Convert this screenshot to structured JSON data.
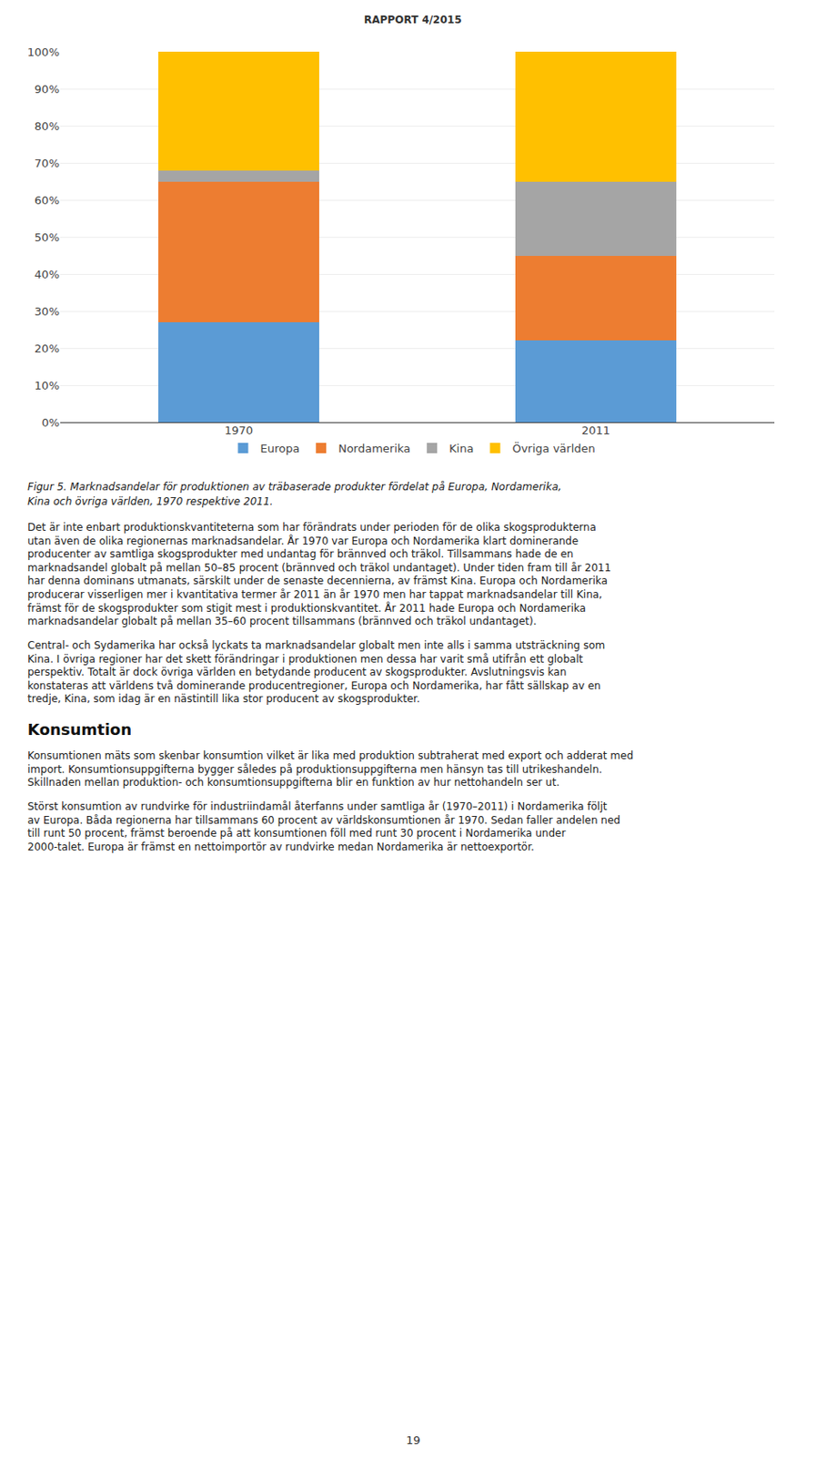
{
  "chart_data": {
    "type": "bar",
    "stacked": true,
    "categories": [
      "1970",
      "2011"
    ],
    "series": [
      {
        "name": "Europa",
        "color": "#5b9bd5",
        "values": [
          27,
          22
        ]
      },
      {
        "name": "Nordamerika",
        "color": "#ed7d31",
        "values": [
          38,
          23
        ]
      },
      {
        "name": "Kina",
        "color": "#a5a5a5",
        "values": [
          3,
          20
        ]
      },
      {
        "name": "Övriga världen",
        "color": "#ffc000",
        "values": [
          32,
          35
        ]
      }
    ],
    "ylim": [
      0,
      100
    ],
    "yticks": [
      {
        "value": 0,
        "label": "0%"
      },
      {
        "value": 10,
        "label": "10%"
      },
      {
        "value": 20,
        "label": "20%"
      },
      {
        "value": 30,
        "label": "30%"
      },
      {
        "value": 40,
        "label": "40%"
      },
      {
        "value": 50,
        "label": "50%"
      },
      {
        "value": 60,
        "label": "60%"
      },
      {
        "value": 70,
        "label": "70%"
      },
      {
        "value": 80,
        "label": "80%"
      },
      {
        "value": 90,
        "label": "90%"
      },
      {
        "value": 100,
        "label": "100%"
      }
    ],
    "grid": true,
    "legend": "bottom",
    "annotations": [
      "RAPPORT 4/2015",
      "Figur 5. Marknadsandelar för produktionen av träbaserade produkter fördelat på Europa, Nordamerika,",
      "Kina och övriga världen, 1970 respektive 2011.",
      "Det är inte enbart produktionskvantiteterna som har förändrats under perioden för de olika skogsprodukterna utan även de olika regionernas marknadsandelar. År 1970 var Europa och Nordamerika klart dominerande producenter av samtliga skogsprodukter med undantag för brännved och träkol. Tillsammans hade de en marknadsandel globalt på mellan 50–85 procent (brännved och träkol undantaget). Under tiden fram till år 2011 har denna dominans utmanats, särskilt under de senaste decennierna, av främst Kina. Europa och Nordamerika producerar visserligen mer i kvantitativa termer år 2011 än år 1970 men har tappat marknadsandelar till Kina, främst för de skogsprodukter som stigit mest i produktionskvantitet. År 2011 hade Europa och Nordamerika marknadsandelar globalt på mellan 35–60 procent tillsammans (brännved och träkol undantaget).",
      "Central- och Sydamerika har också lyckats ta marknadsandelar globalt men inte alls i samma utsträckning som Kina. I övriga regioner har det skett förändringar i produktionen men dessa har varit små utifrån ett globalt perspektiv. Totalt är dock övriga världen en betydande producent av skogsprodukter. Avslutningsvis kan konstateras att världens två dominerande producentregioner, Europa och Nordamerika, har fått sällskap av en tredje, Kina, som idag är en nästintill lika stor producent av skogsprodukter.",
      "Konsumtion",
      "Konsumtionen mäts som skenbar konsumtion vilket är lika med produktion subtraherat med export och adderat med import. Konsumtionsuppgifterna bygger således på produktionsuppgifterna men hänsyn tas till utrikeshandeln. Skillnaden mellan produktion- och konsumtionsuppgifterna blir en funktion av hur nettohandeln ser ut.",
      "Störst konsumtion av rundvirke för industriindamål återfanns under samtliga år (1970–2011) i Nordamerika följt av Europa. Båda regionerna har tillsammans 60 procent av världskonsumtionen år 1970. Sedan faller andelen ned till runt 50 procent, främst beroende på att konsumtionen föll med runt 30 procent i Nordamerika under 2000-talet. Europa är främst en nettoimportör av rundvirke medan Nordamerika är nettoexportör.",
      "19"
    ]
  }
}
